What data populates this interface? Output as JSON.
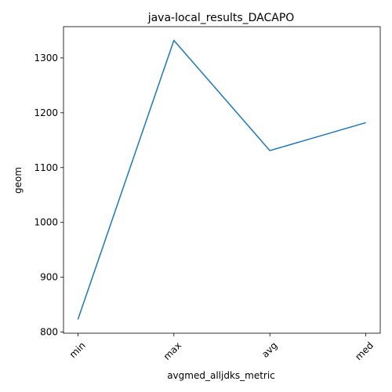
{
  "chart_data": {
    "type": "line",
    "title": "java-local_results_DACAPO",
    "xlabel": "avgmed_alljdks_metric",
    "ylabel": "geom",
    "categories": [
      "min",
      "max",
      "avg",
      "med"
    ],
    "series": [
      {
        "values": [
          823,
          1332,
          1131,
          1182
        ],
        "color": "#1f77b4"
      }
    ],
    "ylim": [
      798,
      1357
    ],
    "yticks": [
      800,
      900,
      1000,
      1100,
      1200,
      1300
    ],
    "grid": false,
    "legend": "none"
  }
}
